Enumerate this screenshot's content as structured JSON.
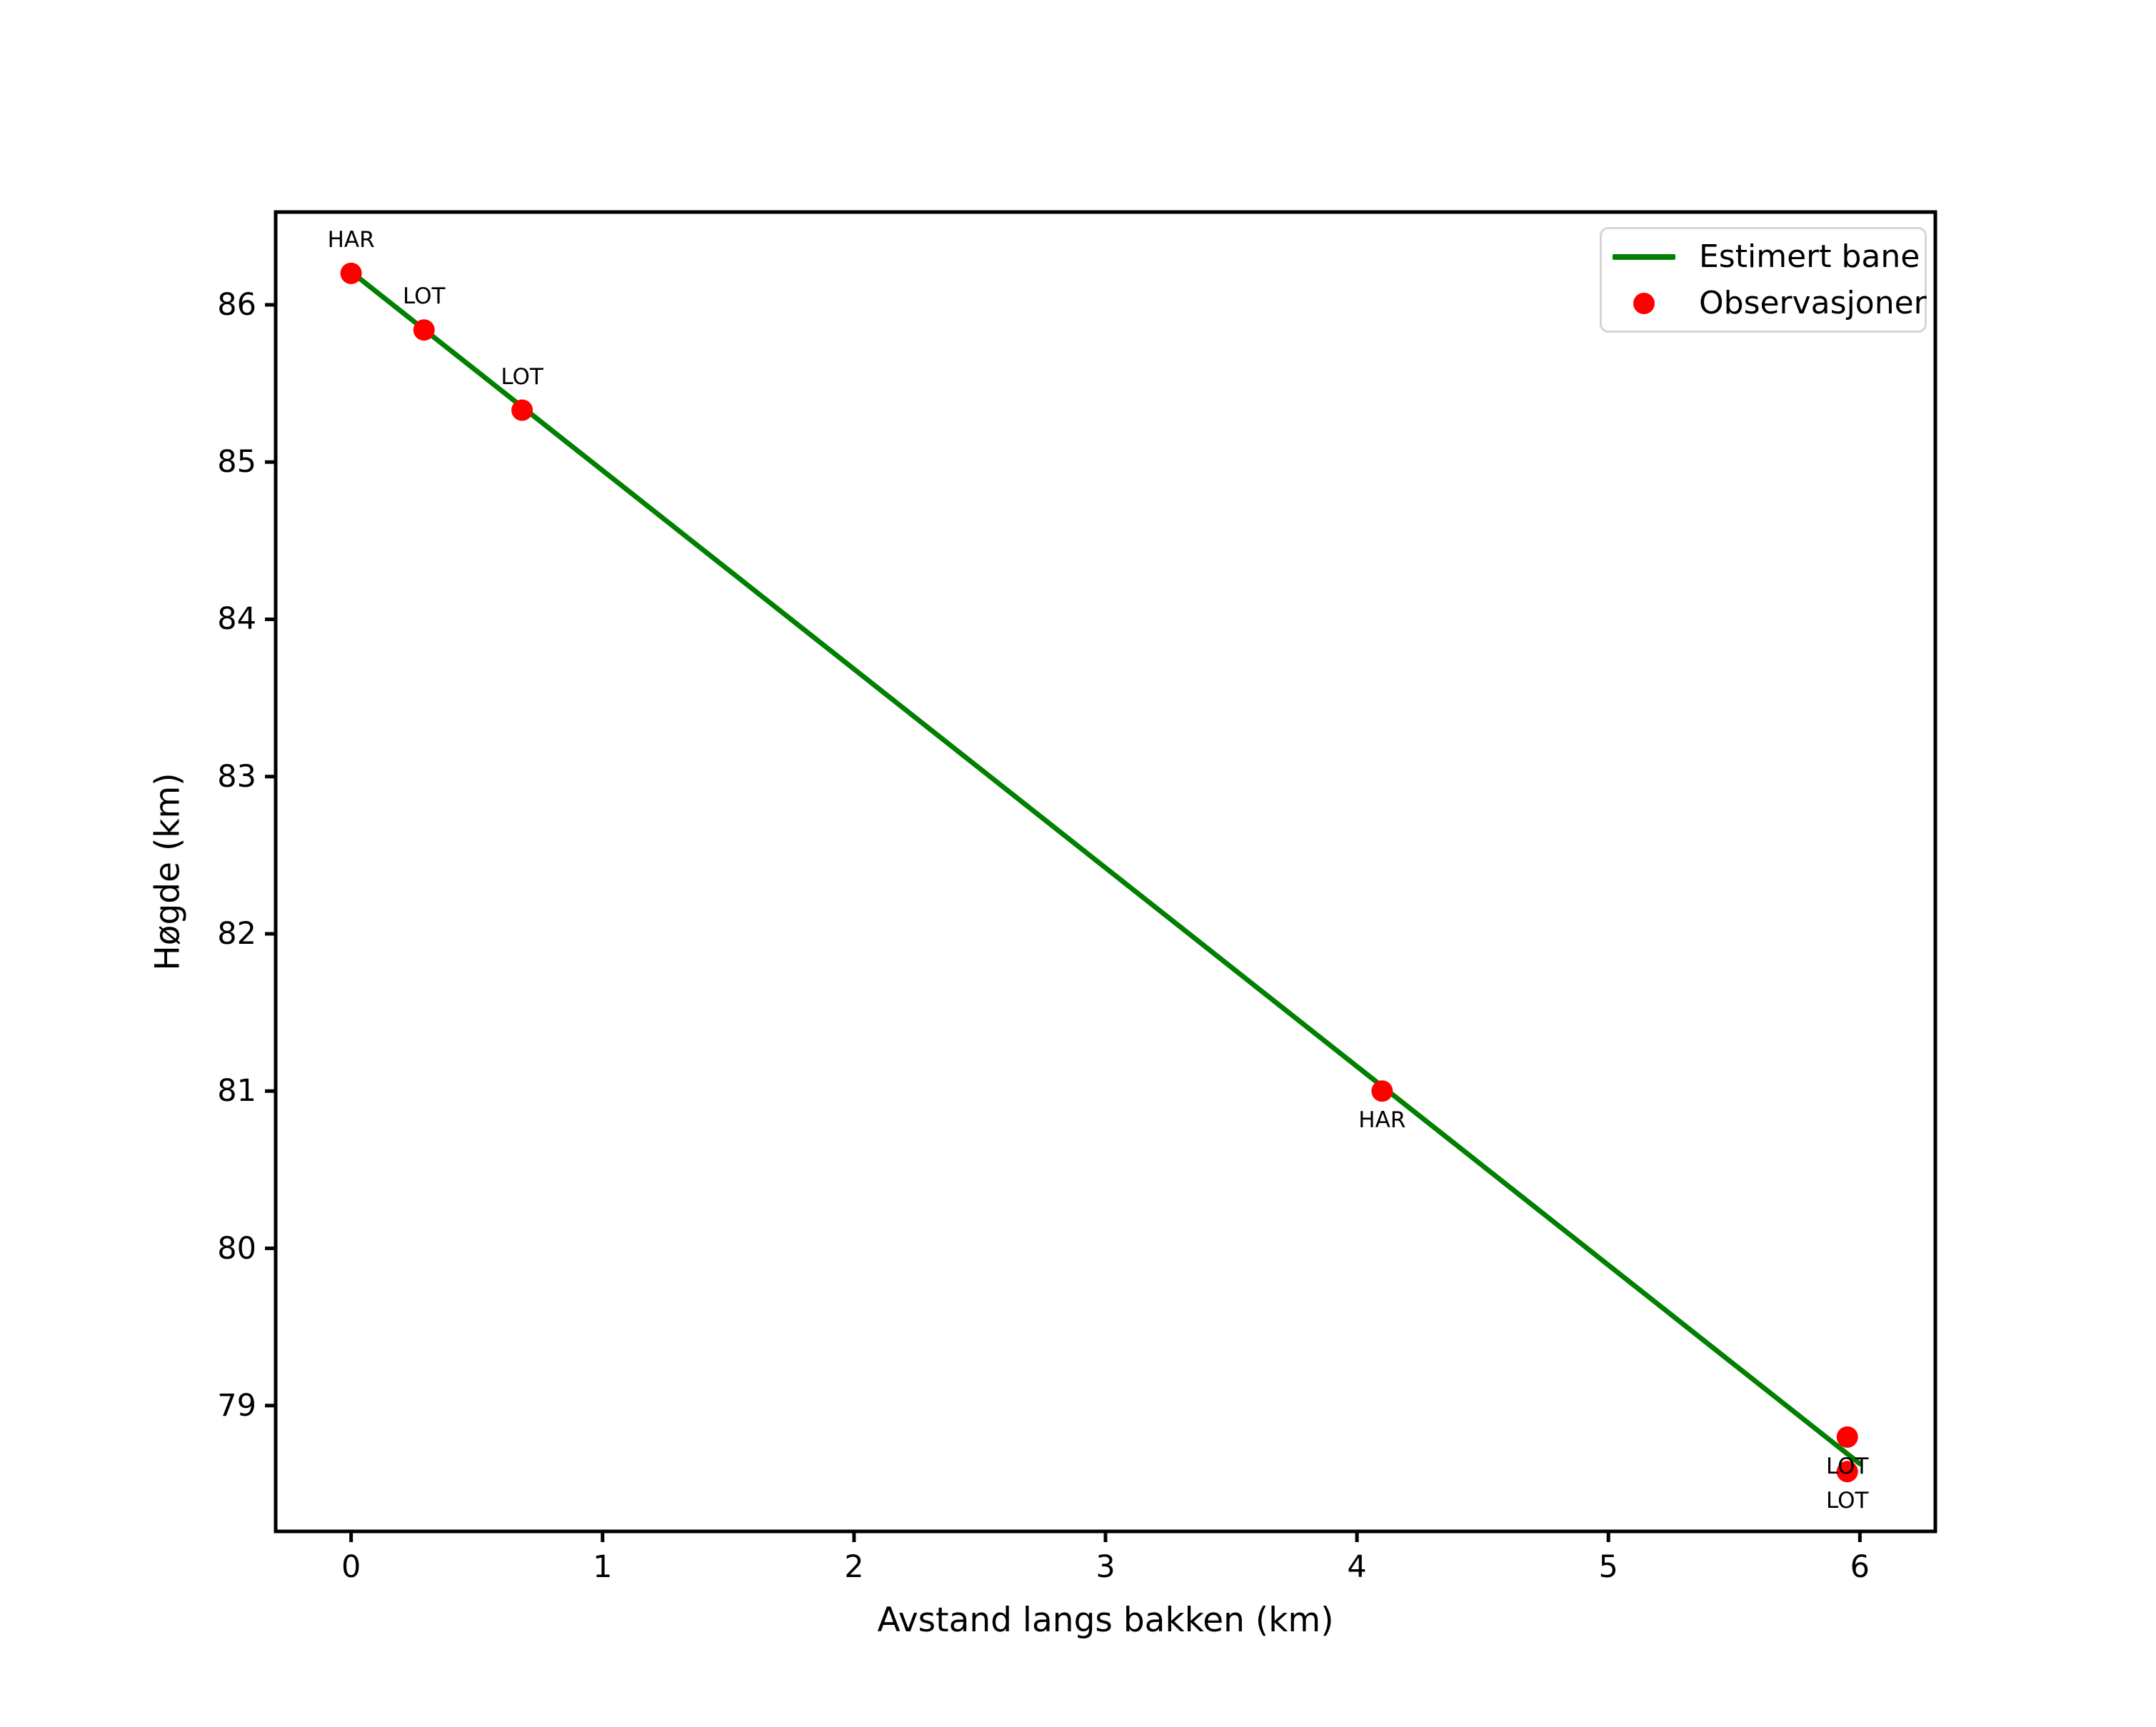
{
  "chart_data": {
    "type": "line",
    "title": "",
    "xlabel": "Avstand langs bakken (km)",
    "ylabel": "Høgde (km)",
    "xlim": [
      -0.3,
      6.3
    ],
    "ylim": [
      78.2,
      86.59
    ],
    "xticks": [
      0,
      1,
      2,
      3,
      4,
      5,
      6
    ],
    "yticks": [
      79,
      80,
      81,
      82,
      83,
      84,
      85,
      86
    ],
    "grid": false,
    "colors": {
      "line": "#008000",
      "marker": "#ff0000",
      "spine": "#000000",
      "legend_border": "#d5d5d5"
    },
    "legend": {
      "position": "upper right",
      "entries": [
        {
          "label": "Estimert bane",
          "type": "line",
          "color": "#008000"
        },
        {
          "label": "Observasjoner",
          "type": "marker",
          "color": "#ff0000"
        }
      ]
    },
    "series": [
      {
        "name": "Estimert bane",
        "type": "line",
        "color": "#008000",
        "points": [
          [
            0.0,
            86.21
          ],
          [
            6.0,
            78.63
          ]
        ]
      },
      {
        "name": "Observasjoner",
        "type": "scatter",
        "color": "#ff0000",
        "points": [
          [
            0.0,
            86.2
          ],
          [
            0.29,
            85.84
          ],
          [
            0.68,
            85.33
          ],
          [
            4.1,
            81.0
          ],
          [
            5.95,
            78.8
          ],
          [
            5.95,
            78.58
          ]
        ]
      }
    ],
    "annotations": [
      {
        "text": "HAR",
        "x": 0.0,
        "y": 86.2,
        "placement": "above"
      },
      {
        "text": "LOT",
        "x": 0.29,
        "y": 85.84,
        "placement": "above"
      },
      {
        "text": "LOT",
        "x": 0.68,
        "y": 85.33,
        "placement": "above"
      },
      {
        "text": "HAR",
        "x": 4.1,
        "y": 81.0,
        "placement": "below"
      },
      {
        "text": "LOT",
        "x": 5.95,
        "y": 78.8,
        "placement": "below"
      },
      {
        "text": "LOT",
        "x": 5.95,
        "y": 78.58,
        "placement": "below"
      }
    ]
  }
}
